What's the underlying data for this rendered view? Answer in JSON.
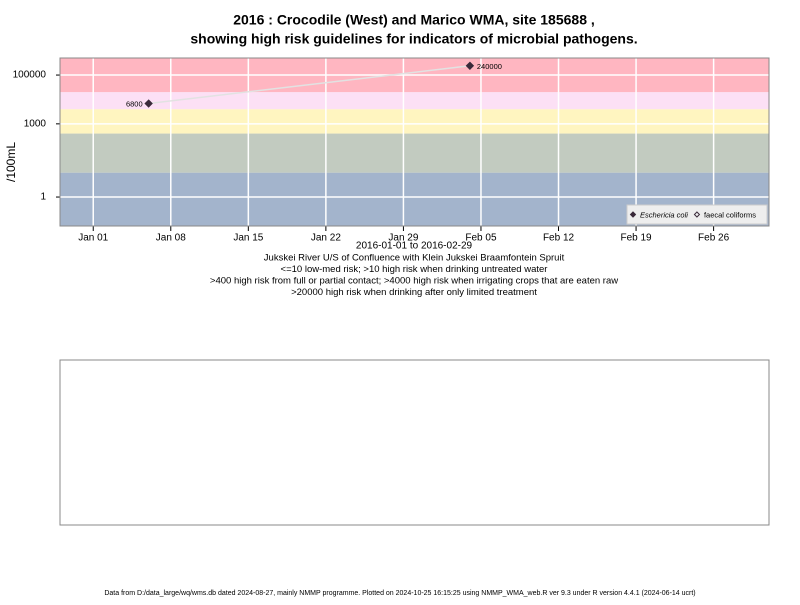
{
  "chart_data": {
    "type": "line",
    "title": [
      "2016 : Crocodile (West) and Marico WMA, site 185688 ,",
      "showing high risk guidelines for indicators of microbial pathogens."
    ],
    "xlabel": "2016-01-01 to 2016-02-29",
    "notes": [
      "Jukskei River U/S of Confluence with Klein Jukskei Braamfontein Spruit",
      "<=10 low-med risk; >10 high risk when drinking untreated water",
      ">400 high risk from full or partial contact; >4000 high risk when irrigating crops that are eaten raw",
      ">20000 high risk when drinking after only limited treatment"
    ],
    "ylabel": "/100mL",
    "log_y": true,
    "ylim": [
      0.065,
      500000
    ],
    "yticks": [
      1,
      1000,
      100000
    ],
    "xlim": [
      "2015-12-29",
      "2016-03-02"
    ],
    "xticks": [
      {
        "value": "2016-01-01",
        "label": "Jan 01"
      },
      {
        "value": "2016-01-08",
        "label": "Jan 08"
      },
      {
        "value": "2016-01-15",
        "label": "Jan 15"
      },
      {
        "value": "2016-01-22",
        "label": "Jan 22"
      },
      {
        "value": "2016-01-29",
        "label": "Jan 29"
      },
      {
        "value": "2016-02-05",
        "label": "Feb 05"
      },
      {
        "value": "2016-02-12",
        "label": "Feb 12"
      },
      {
        "value": "2016-02-19",
        "label": "Feb 19"
      },
      {
        "value": "2016-02-26",
        "label": "Feb 26"
      }
    ],
    "grid": true,
    "band_edges": [
      10,
      400,
      4000,
      20000
    ],
    "band_colors": [
      "#a3b4cc",
      "#c2cbc0",
      "#fff5c0",
      "#fce0f5",
      "#ffb6c1"
    ],
    "x": [
      "2016-01-06",
      "2016-02-04"
    ],
    "series": [
      {
        "name": "Eschericia coli",
        "color": "#3a2a3a",
        "marker": "filled",
        "values": [
          6800,
          240000
        ]
      },
      {
        "name": "faecal coliforms",
        "color": "#3a2a3a",
        "marker": "open",
        "values": [
          null,
          null
        ]
      }
    ],
    "line_color": "#e2e2e2",
    "legend": "bottom-right"
  },
  "footer": "Data from D:/data_large/wq/wms.db dated 2024-08-27, mainly NMMP programme. Plotted on 2024-10-25 16:15:25 using NMMP_WMA_web.R ver 9.3 under R version 4.4.1 (2024-06-14 ucrt)"
}
